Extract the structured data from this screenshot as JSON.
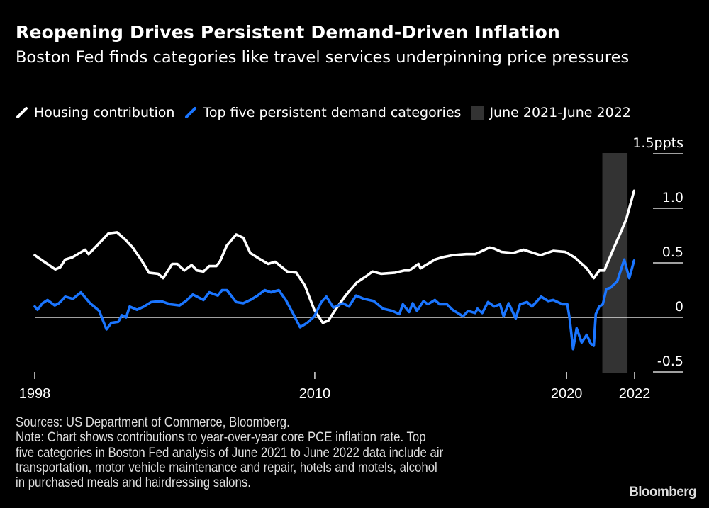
{
  "title": "Reopening Drives Persistent Demand-Driven Inflation",
  "subtitle": "Boston Fed finds categories like travel services underpinning price pressures",
  "legend": [
    {
      "label": "Housing contribution",
      "color": "#ffffff",
      "type": "line"
    },
    {
      "label": "Top five persistent demand categories",
      "color": "#1a75ff",
      "type": "line"
    },
    {
      "label": "June 2021-June 2022",
      "color": "#333333",
      "type": "shade"
    }
  ],
  "footnote": {
    "sources": "Sources: US Department of Commerce, Bloomberg.",
    "note_lines": [
      "Note: Chart shows contributions to year-over-year core PCE inflation rate. Top",
      "five categories in Boston Fed analysis of June 2021 to June 2022 data include air",
      "transportation, motor vehicle maintenance and repair, hotels and motels, alcohol",
      "in purchased meals and hairdressing salons."
    ]
  },
  "logo": "Bloomberg",
  "chart_data": {
    "type": "line",
    "title": "Reopening Drives Persistent Demand-Driven Inflation",
    "ylabel_unit": "ppts",
    "ylim": [
      -0.5,
      1.5
    ],
    "yticks": [
      {
        "value": 1.5,
        "label": "1.5ppts"
      },
      {
        "value": 1.0,
        "label": "1.0"
      },
      {
        "value": 0.5,
        "label": "0.5"
      },
      {
        "value": 0,
        "label": "0"
      },
      {
        "value": -0.5,
        "label": "-0.5"
      }
    ],
    "xlim": [
      1998.88,
      2022.7
    ],
    "xticks": [
      {
        "value": 1998.88,
        "label": "1998"
      },
      {
        "value": 2010.0,
        "label": "2010"
      },
      {
        "value": 2020.0,
        "label": "2020"
      },
      {
        "value": 2022.7,
        "label": "2022"
      }
    ],
    "shaded_region": {
      "label": "June 2021-June 2022",
      "from": 2021.42,
      "to": 2022.42,
      "color": "#333333"
    },
    "grid": "right-side tick lines only, zero line full width",
    "legend_position": "top",
    "series": [
      {
        "name": "Housing contribution",
        "color": "#ffffff",
        "points": [
          [
            1998.88,
            0.57
          ],
          [
            1999.19,
            0.52
          ],
          [
            1999.7,
            0.44
          ],
          [
            1999.89,
            0.46
          ],
          [
            2000.09,
            0.53
          ],
          [
            2000.37,
            0.55
          ],
          [
            2000.88,
            0.62
          ],
          [
            2001.02,
            0.58
          ],
          [
            2001.44,
            0.68
          ],
          [
            2001.81,
            0.77
          ],
          [
            2002.15,
            0.78
          ],
          [
            2002.49,
            0.71
          ],
          [
            2002.77,
            0.64
          ],
          [
            2003.13,
            0.52
          ],
          [
            2003.42,
            0.41
          ],
          [
            2003.78,
            0.4
          ],
          [
            2003.98,
            0.36
          ],
          [
            2004.34,
            0.49
          ],
          [
            2004.54,
            0.49
          ],
          [
            2004.82,
            0.43
          ],
          [
            2005.11,
            0.48
          ],
          [
            2005.33,
            0.43
          ],
          [
            2005.58,
            0.42
          ],
          [
            2005.81,
            0.47
          ],
          [
            2006.09,
            0.47
          ],
          [
            2006.23,
            0.51
          ],
          [
            2006.51,
            0.66
          ],
          [
            2006.88,
            0.76
          ],
          [
            2007.16,
            0.73
          ],
          [
            2007.44,
            0.59
          ],
          [
            2007.78,
            0.54
          ],
          [
            2008.15,
            0.49
          ],
          [
            2008.43,
            0.51
          ],
          [
            2008.91,
            0.42
          ],
          [
            2009.27,
            0.41
          ],
          [
            2009.61,
            0.29
          ],
          [
            2009.98,
            0.07
          ],
          [
            2010.32,
            -0.05
          ],
          [
            2010.54,
            -0.03
          ],
          [
            2010.82,
            0.07
          ],
          [
            2011.22,
            0.2
          ],
          [
            2011.67,
            0.32
          ],
          [
            2012.06,
            0.38
          ],
          [
            2012.29,
            0.42
          ],
          [
            2012.63,
            0.4
          ],
          [
            2013.19,
            0.41
          ],
          [
            2013.56,
            0.43
          ],
          [
            2013.75,
            0.43
          ],
          [
            2014.12,
            0.49
          ],
          [
            2014.2,
            0.45
          ],
          [
            2014.77,
            0.53
          ],
          [
            2015.05,
            0.55
          ],
          [
            2015.47,
            0.57
          ],
          [
            2016.01,
            0.58
          ],
          [
            2016.37,
            0.58
          ],
          [
            2016.94,
            0.64
          ],
          [
            2017.13,
            0.63
          ],
          [
            2017.42,
            0.6
          ],
          [
            2017.87,
            0.59
          ],
          [
            2018.29,
            0.62
          ],
          [
            2018.96,
            0.57
          ],
          [
            2019.47,
            0.61
          ],
          [
            2019.95,
            0.6
          ],
          [
            2020.32,
            0.55
          ],
          [
            2020.8,
            0.45
          ],
          [
            2021.08,
            0.36
          ],
          [
            2021.3,
            0.43
          ],
          [
            2021.5,
            0.43
          ],
          [
            2021.92,
            0.66
          ],
          [
            2022.15,
            0.78
          ],
          [
            2022.37,
            0.9
          ],
          [
            2022.68,
            1.16
          ]
        ]
      },
      {
        "name": "Top five persistent demand categories",
        "color": "#1a75ff",
        "points": [
          [
            1998.88,
            0.1
          ],
          [
            1998.99,
            0.07
          ],
          [
            1999.19,
            0.13
          ],
          [
            1999.39,
            0.16
          ],
          [
            1999.67,
            0.11
          ],
          [
            1999.84,
            0.13
          ],
          [
            2000.09,
            0.19
          ],
          [
            2000.4,
            0.17
          ],
          [
            2000.6,
            0.21
          ],
          [
            2000.71,
            0.23
          ],
          [
            2001.08,
            0.13
          ],
          [
            2001.44,
            0.06
          ],
          [
            2001.73,
            -0.11
          ],
          [
            2001.92,
            -0.05
          ],
          [
            2002.2,
            -0.04
          ],
          [
            2002.34,
            0.02
          ],
          [
            2002.51,
            0.0
          ],
          [
            2002.65,
            0.1
          ],
          [
            2002.94,
            0.07
          ],
          [
            2003.22,
            0.1
          ],
          [
            2003.5,
            0.14
          ],
          [
            2003.89,
            0.15
          ],
          [
            2004.26,
            0.12
          ],
          [
            2004.63,
            0.11
          ],
          [
            2004.88,
            0.15
          ],
          [
            2005.16,
            0.21
          ],
          [
            2005.58,
            0.16
          ],
          [
            2005.81,
            0.23
          ],
          [
            2006.15,
            0.2
          ],
          [
            2006.32,
            0.25
          ],
          [
            2006.51,
            0.25
          ],
          [
            2006.88,
            0.14
          ],
          [
            2007.16,
            0.13
          ],
          [
            2007.44,
            0.16
          ],
          [
            2007.73,
            0.2
          ],
          [
            2008.01,
            0.25
          ],
          [
            2008.26,
            0.23
          ],
          [
            2008.57,
            0.25
          ],
          [
            2008.85,
            0.16
          ],
          [
            2009.13,
            0.04
          ],
          [
            2009.42,
            -0.09
          ],
          [
            2009.7,
            -0.05
          ],
          [
            2009.98,
            0.01
          ],
          [
            2010.26,
            0.14
          ],
          [
            2010.46,
            0.19
          ],
          [
            2010.74,
            0.09
          ],
          [
            2011.11,
            0.13
          ],
          [
            2011.36,
            0.1
          ],
          [
            2011.64,
            0.2
          ],
          [
            2011.95,
            0.17
          ],
          [
            2012.34,
            0.15
          ],
          [
            2012.71,
            0.08
          ],
          [
            2013.08,
            0.06
          ],
          [
            2013.36,
            0.03
          ],
          [
            2013.5,
            0.12
          ],
          [
            2013.75,
            0.05
          ],
          [
            2013.89,
            0.13
          ],
          [
            2014.06,
            0.06
          ],
          [
            2014.32,
            0.15
          ],
          [
            2014.49,
            0.12
          ],
          [
            2014.77,
            0.16
          ],
          [
            2014.96,
            0.12
          ],
          [
            2015.25,
            0.12
          ],
          [
            2015.47,
            0.07
          ],
          [
            2015.89,
            0.01
          ],
          [
            2016.09,
            0.06
          ],
          [
            2016.37,
            0.04
          ],
          [
            2016.46,
            0.08
          ],
          [
            2016.65,
            0.04
          ],
          [
            2016.88,
            0.14
          ],
          [
            2017.13,
            0.1
          ],
          [
            2017.36,
            0.12
          ],
          [
            2017.5,
            0.01
          ],
          [
            2017.7,
            0.13
          ],
          [
            2017.98,
            -0.01
          ],
          [
            2018.15,
            0.12
          ],
          [
            2018.43,
            0.14
          ],
          [
            2018.63,
            0.1
          ],
          [
            2018.99,
            0.19
          ],
          [
            2019.27,
            0.15
          ],
          [
            2019.47,
            0.16
          ],
          [
            2019.84,
            0.12
          ],
          [
            2020.03,
            0.12
          ],
          [
            2020.12,
            -0.01
          ],
          [
            2020.26,
            -0.29
          ],
          [
            2020.4,
            -0.1
          ],
          [
            2020.6,
            -0.23
          ],
          [
            2020.8,
            -0.16
          ],
          [
            2020.96,
            -0.24
          ],
          [
            2021.08,
            -0.26
          ],
          [
            2021.16,
            0.03
          ],
          [
            2021.3,
            0.1
          ],
          [
            2021.44,
            0.12
          ],
          [
            2021.58,
            0.26
          ],
          [
            2021.73,
            0.27
          ],
          [
            2022.01,
            0.33
          ],
          [
            2022.29,
            0.53
          ],
          [
            2022.49,
            0.36
          ],
          [
            2022.68,
            0.52
          ]
        ]
      }
    ]
  }
}
